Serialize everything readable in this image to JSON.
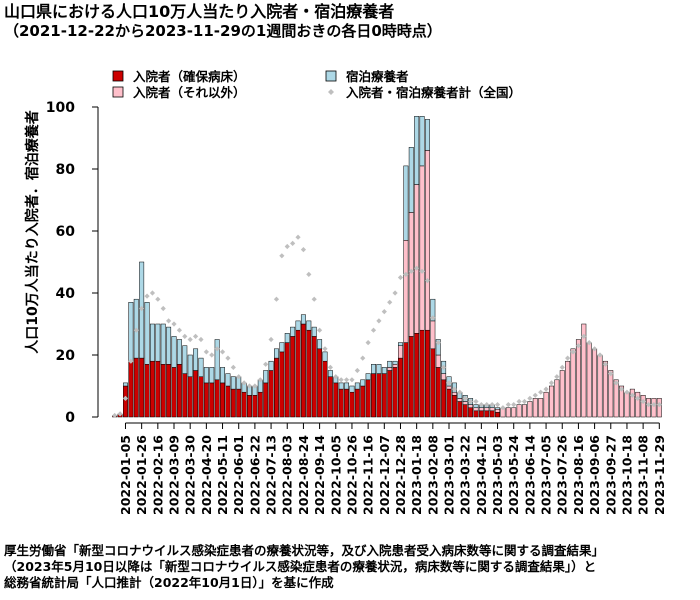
{
  "title": "山口県における人口10万人当たり入院者・宿泊療養者",
  "subtitle": "（2021-12-22から2023-11-29の1週間おきの各日0時時点）",
  "source_lines": [
    "厚生労働省「新型コロナウイルス感染症患者の療養状況等，及び入院患者受入病床数等に関する調査結果」",
    "（2023年5月10日以降は「新型コロナウイルス感染症患者の療養状況，病床数等に関する調査結果」）と",
    "総務省統計局「人口推計（2022年10月1日）」を基に作成"
  ],
  "colors": {
    "hospitalized_confirmed": "#cc0000",
    "hospitalized_other": "#ffc0cb",
    "accommodation": "#add8e6",
    "national_total": "#bfbfbf"
  },
  "chart_data": {
    "type": "bar",
    "stacked": true,
    "ylabel": "人口10万人当たり入院者．宿泊療養者",
    "xlabel": "",
    "ylim": [
      0,
      100
    ],
    "y_ticks": [
      0,
      20,
      40,
      60,
      80,
      100
    ],
    "grid": false,
    "legend_position": "top",
    "x_tick_labels": [
      "2022-01-05",
      "2022-01-26",
      "2022-02-16",
      "2022-03-09",
      "2022-03-30",
      "2022-04-20",
      "2022-05-11",
      "2022-06-01",
      "2022-06-22",
      "2022-07-13",
      "2022-08-03",
      "2022-08-24",
      "2022-09-14",
      "2022-10-05",
      "2022-10-26",
      "2022-11-16",
      "2022-12-07",
      "2022-12-28",
      "2023-01-18",
      "2023-02-08",
      "2023-03-01",
      "2023-03-22",
      "2023-04-12",
      "2023-05-03",
      "2023-05-24",
      "2023-06-14",
      "2023-07-05",
      "2023-07-26",
      "2023-08-16",
      "2023-09-06",
      "2023-09-27",
      "2023-10-18",
      "2023-11-08",
      "2023-11-29"
    ],
    "x": [
      "2021-12-22",
      "2021-12-29",
      "2022-01-05",
      "2022-01-12",
      "2022-01-19",
      "2022-01-26",
      "2022-02-02",
      "2022-02-09",
      "2022-02-16",
      "2022-02-23",
      "2022-03-02",
      "2022-03-09",
      "2022-03-16",
      "2022-03-23",
      "2022-03-30",
      "2022-04-06",
      "2022-04-13",
      "2022-04-20",
      "2022-04-27",
      "2022-05-04",
      "2022-05-11",
      "2022-05-18",
      "2022-05-25",
      "2022-06-01",
      "2022-06-08",
      "2022-06-15",
      "2022-06-22",
      "2022-06-29",
      "2022-07-06",
      "2022-07-13",
      "2022-07-20",
      "2022-07-27",
      "2022-08-03",
      "2022-08-10",
      "2022-08-17",
      "2022-08-24",
      "2022-08-31",
      "2022-09-07",
      "2022-09-14",
      "2022-09-21",
      "2022-09-28",
      "2022-10-05",
      "2022-10-12",
      "2022-10-19",
      "2022-10-26",
      "2022-11-02",
      "2022-11-09",
      "2022-11-16",
      "2022-11-23",
      "2022-11-30",
      "2022-12-07",
      "2022-12-14",
      "2022-12-21",
      "2022-12-28",
      "2023-01-04",
      "2023-01-11",
      "2023-01-18",
      "2023-01-25",
      "2023-02-01",
      "2023-02-08",
      "2023-02-15",
      "2023-02-22",
      "2023-03-01",
      "2023-03-08",
      "2023-03-15",
      "2023-03-22",
      "2023-03-29",
      "2023-04-05",
      "2023-04-12",
      "2023-04-19",
      "2023-04-26",
      "2023-05-03",
      "2023-05-10",
      "2023-05-17",
      "2023-05-24",
      "2023-05-31",
      "2023-06-07",
      "2023-06-14",
      "2023-06-21",
      "2023-06-28",
      "2023-07-05",
      "2023-07-12",
      "2023-07-19",
      "2023-07-26",
      "2023-08-02",
      "2023-08-09",
      "2023-08-16",
      "2023-08-23",
      "2023-08-30",
      "2023-09-06",
      "2023-09-13",
      "2023-09-20",
      "2023-09-27",
      "2023-10-04",
      "2023-10-11",
      "2023-10-18",
      "2023-10-25",
      "2023-11-01",
      "2023-11-08",
      "2023-11-15",
      "2023-11-22",
      "2023-11-29"
    ],
    "series": [
      {
        "name": "入院者（確保病床）",
        "values": [
          0.5,
          1,
          10,
          18,
          19,
          19,
          17,
          18,
          18,
          17,
          17,
          16,
          17,
          14,
          13,
          15,
          13,
          11,
          11,
          12,
          11,
          10,
          9,
          9,
          8,
          7,
          7,
          8,
          11,
          15,
          19,
          21,
          24,
          26,
          28,
          30,
          28,
          26,
          22,
          18,
          13,
          11,
          9,
          9,
          8,
          9,
          10,
          12,
          14,
          14,
          14,
          15,
          16,
          19,
          24,
          26,
          27,
          28,
          28,
          22,
          16,
          12,
          9,
          7,
          5,
          4,
          3,
          2,
          2,
          2,
          2,
          1.5,
          0,
          0,
          0,
          0,
          0,
          0,
          0,
          0,
          0,
          0,
          0,
          0,
          0,
          0,
          0,
          0,
          0,
          0,
          0,
          0,
          0,
          0,
          0,
          0,
          0,
          0,
          0,
          0,
          0,
          0
        ]
      },
      {
        "name": "入院者（それ以外）",
        "values": [
          0,
          0,
          0,
          0,
          0,
          0,
          0,
          0,
          0,
          0,
          0,
          0,
          0,
          0,
          0,
          0,
          0,
          0,
          0,
          0,
          0,
          0,
          0,
          0,
          0,
          0,
          0,
          0,
          0,
          0,
          0,
          0,
          0,
          0,
          0,
          0,
          0,
          0,
          0,
          0,
          0,
          0,
          0,
          0,
          0,
          0,
          0,
          0,
          0,
          0,
          0,
          1,
          1,
          4,
          33,
          40,
          48,
          53,
          58,
          9,
          4,
          2,
          1,
          1,
          1,
          1,
          1,
          1,
          1,
          1,
          1,
          1,
          3,
          3,
          3,
          4,
          4,
          5,
          6,
          6,
          8,
          10,
          12,
          15,
          18,
          22,
          25,
          30,
          24,
          22,
          20,
          18,
          15,
          12,
          10,
          8,
          9,
          8,
          7,
          6,
          6,
          6
        ]
      },
      {
        "name": "宿泊療養者",
        "values": [
          0,
          0,
          1,
          19,
          19,
          31,
          20,
          12,
          12,
          13,
          12,
          10,
          8,
          9,
          7,
          7,
          6,
          5,
          5,
          13,
          5,
          4,
          4,
          4,
          3,
          3,
          3,
          4,
          4,
          3,
          3,
          3,
          3,
          3,
          3,
          3,
          3,
          3,
          3,
          3,
          2,
          2,
          2,
          2,
          2,
          2,
          2,
          2,
          3,
          3,
          2,
          2,
          1,
          1,
          24,
          21,
          22,
          16,
          10,
          7,
          5,
          4,
          3,
          3,
          2,
          2,
          2,
          1,
          1,
          1,
          1,
          0.5,
          0,
          0,
          0,
          0,
          0,
          0,
          0,
          0,
          0,
          0,
          0,
          0,
          0,
          0,
          0,
          0,
          0,
          0,
          0,
          0,
          0,
          0,
          0,
          0,
          0,
          0,
          0,
          0,
          0,
          0
        ]
      },
      {
        "name": "入院者・宿泊療養者計（全国）",
        "type": "scatter",
        "values": [
          0.5,
          1,
          6,
          18,
          28,
          35,
          39,
          40,
          38,
          35,
          31,
          30,
          28,
          26,
          25,
          26,
          25,
          21,
          20,
          22,
          21,
          19,
          16,
          13,
          11,
          10,
          10,
          12,
          17,
          25,
          38,
          52,
          55,
          56,
          58,
          54,
          46,
          38,
          28,
          22,
          16,
          13,
          12,
          12,
          12,
          15,
          19,
          24,
          28,
          31,
          34,
          37,
          40,
          45,
          46,
          47,
          48,
          47,
          44,
          32,
          24,
          16,
          11,
          9,
          8,
          6,
          5,
          5,
          4,
          4,
          4,
          4,
          3,
          4,
          4,
          5,
          5,
          6,
          7,
          8,
          9,
          11,
          13,
          16,
          19,
          21,
          23,
          26,
          24,
          22,
          20,
          17,
          14,
          11,
          9,
          8,
          7,
          6,
          5,
          4,
          4,
          4
        ]
      }
    ]
  }
}
